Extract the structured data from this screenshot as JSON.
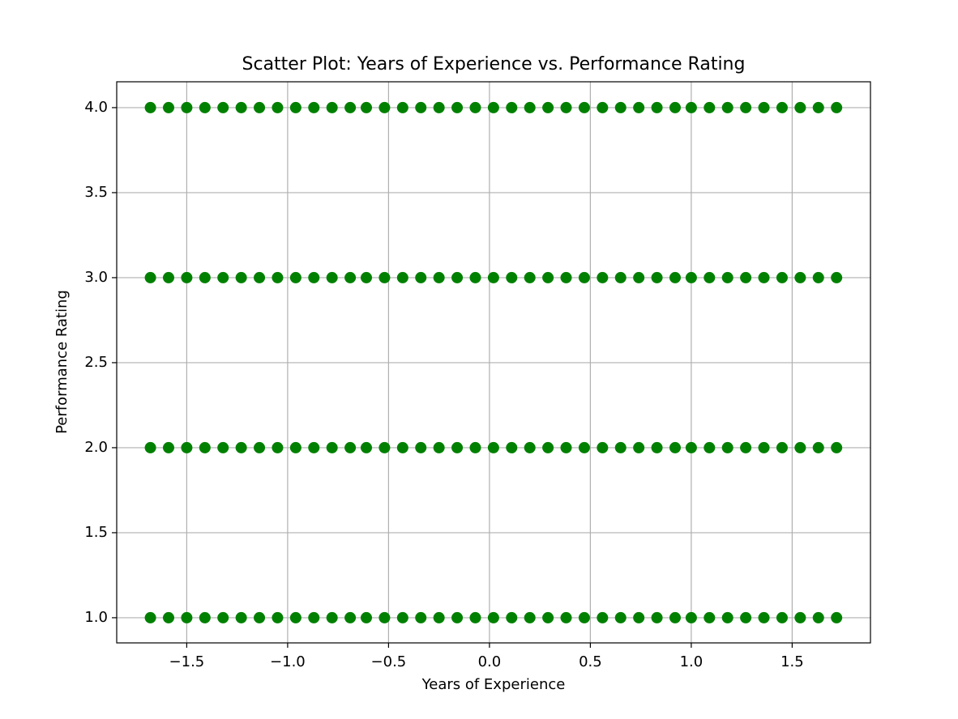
{
  "chart_data": {
    "type": "scatter",
    "title": "Scatter Plot: Years of Experience vs. Performance Rating",
    "xlabel": "Years of Experience",
    "ylabel": "Performance Rating",
    "color": "#008000",
    "grid": true,
    "xlim": [
      -1.847,
      1.888
    ],
    "ylim": [
      0.852,
      4.152
    ],
    "xticks": [
      {
        "value": -1.5,
        "label": "−1.5"
      },
      {
        "value": -1.0,
        "label": "−1.0"
      },
      {
        "value": -0.5,
        "label": "−0.5"
      },
      {
        "value": 0,
        "label": "0.0"
      },
      {
        "value": 0.5,
        "label": "0.5"
      },
      {
        "value": 1.0,
        "label": "1.0"
      },
      {
        "value": 1.5,
        "label": "1.5"
      }
    ],
    "yticks": [
      {
        "value": 1,
        "label": "1.0"
      },
      {
        "value": 1.5,
        "label": "1.5"
      },
      {
        "value": 2,
        "label": "2.0"
      },
      {
        "value": 2.5,
        "label": "2.5"
      },
      {
        "value": 3,
        "label": "3.0"
      },
      {
        "value": 3.5,
        "label": "3.5"
      },
      {
        "value": 4,
        "label": "4.0"
      }
    ],
    "x": [
      -1.68,
      -1.59,
      -1.5,
      -1.41,
      -1.32,
      -1.23,
      -1.14,
      -1.05,
      -0.96,
      -0.87,
      -0.78,
      -0.69,
      -0.61,
      -0.52,
      -0.43,
      -0.34,
      -0.25,
      -0.16,
      -0.07,
      0.02,
      0.11,
      0.2,
      0.29,
      0.38,
      0.47,
      0.56,
      0.65,
      0.74,
      0.83,
      0.92,
      1.0,
      1.09,
      1.18,
      1.27,
      1.36,
      1.45,
      1.54,
      1.63,
      1.72,
      -1.68,
      -1.59,
      -1.5,
      -1.41,
      -1.32,
      -1.23,
      -1.14,
      -1.05,
      -0.96,
      -0.87,
      -0.78,
      -0.69,
      -0.61,
      -0.52,
      -0.43,
      -0.34,
      -0.25,
      -0.16,
      -0.07,
      0.02,
      0.11,
      0.2,
      0.29,
      0.38,
      0.47,
      0.56,
      0.65,
      0.74,
      0.83,
      0.92,
      1.0,
      1.09,
      1.18,
      1.27,
      1.36,
      1.45,
      1.54,
      1.63,
      1.72,
      -1.68,
      -1.59,
      -1.5,
      -1.41,
      -1.32,
      -1.23,
      -1.14,
      -1.05,
      -0.96,
      -0.87,
      -0.78,
      -0.69,
      -0.61,
      -0.52,
      -0.43,
      -0.34,
      -0.25,
      -0.16,
      -0.07,
      0.02,
      0.11,
      0.2,
      0.29,
      0.38,
      0.47,
      0.56,
      0.65,
      0.74,
      0.83,
      0.92,
      1.0,
      1.09,
      1.18,
      1.27,
      1.36,
      1.45,
      1.54,
      1.63,
      1.72,
      -1.68,
      -1.59,
      -1.5,
      -1.41,
      -1.32,
      -1.23,
      -1.14,
      -1.05,
      -0.96,
      -0.87,
      -0.78,
      -0.69,
      -0.61,
      -0.52,
      -0.43,
      -0.34,
      -0.25,
      -0.16,
      -0.07,
      0.02,
      0.11,
      0.2,
      0.29,
      0.38,
      0.47,
      0.56,
      0.65,
      0.74,
      0.83,
      0.92,
      1.0,
      1.09,
      1.18,
      1.27,
      1.36,
      1.45,
      1.54,
      1.63,
      1.72
    ],
    "values": [
      4,
      4,
      4,
      4,
      4,
      4,
      4,
      4,
      4,
      4,
      4,
      4,
      4,
      4,
      4,
      4,
      4,
      4,
      4,
      4,
      4,
      4,
      4,
      4,
      4,
      4,
      4,
      4,
      4,
      4,
      4,
      4,
      4,
      4,
      4,
      4,
      4,
      4,
      4,
      3,
      3,
      3,
      3,
      3,
      3,
      3,
      3,
      3,
      3,
      3,
      3,
      3,
      3,
      3,
      3,
      3,
      3,
      3,
      3,
      3,
      3,
      3,
      3,
      3,
      3,
      3,
      3,
      3,
      3,
      3,
      3,
      3,
      3,
      3,
      3,
      3,
      3,
      3,
      2,
      2,
      2,
      2,
      2,
      2,
      2,
      2,
      2,
      2,
      2,
      2,
      2,
      2,
      2,
      2,
      2,
      2,
      2,
      2,
      2,
      2,
      2,
      2,
      2,
      2,
      2,
      2,
      2,
      2,
      2,
      2,
      2,
      2,
      2,
      2,
      2,
      2,
      2,
      1,
      1,
      1,
      1,
      1,
      1,
      1,
      1,
      1,
      1,
      1,
      1,
      1,
      1,
      1,
      1,
      1,
      1,
      1,
      1,
      1,
      1,
      1,
      1,
      1,
      1,
      1,
      1,
      1,
      1,
      1,
      1,
      1,
      1,
      1,
      1,
      1,
      1,
      1
    ]
  }
}
